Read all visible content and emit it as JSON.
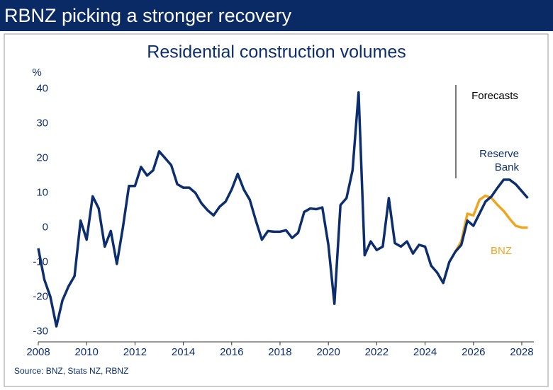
{
  "header": {
    "title": "RBNZ picking a stronger recovery"
  },
  "chart_data": {
    "type": "line",
    "title": "Residential construction volumes",
    "y_label": "%",
    "xlim": [
      2008,
      2028.5
    ],
    "xticks": [
      2008,
      2010,
      2012,
      2014,
      2016,
      2018,
      2020,
      2022,
      2024,
      2026,
      2028
    ],
    "ylim": [
      -33,
      43
    ],
    "yticks": [
      -30,
      -20,
      -10,
      0,
      10,
      20,
      30,
      40
    ],
    "grid": false,
    "series": [
      {
        "name": "BNZ",
        "color": "#f0a51c",
        "x": [
          2025.25,
          2025.5,
          2025.75,
          2026.0,
          2026.25,
          2026.5,
          2026.75,
          2027.0,
          2027.25,
          2027.5,
          2027.75,
          2028.0,
          2028.25
        ],
        "values": [
          -7,
          -4,
          4,
          3.5,
          8,
          9.2,
          8.5,
          6.5,
          4.8,
          2.5,
          0.5,
          0,
          0
        ]
      },
      {
        "name": "Reserve Bank",
        "color": "#0c2e6e",
        "x": [
          2008.0,
          2008.25,
          2008.5,
          2008.75,
          2009.0,
          2009.25,
          2009.5,
          2009.75,
          2010.0,
          2010.25,
          2010.5,
          2010.75,
          2011.0,
          2011.25,
          2011.5,
          2011.75,
          2012.0,
          2012.25,
          2012.5,
          2012.75,
          2013.0,
          2013.25,
          2013.5,
          2013.75,
          2014.0,
          2014.25,
          2014.5,
          2014.75,
          2015.0,
          2015.25,
          2015.5,
          2015.75,
          2016.0,
          2016.25,
          2016.5,
          2016.75,
          2017.0,
          2017.25,
          2017.5,
          2017.75,
          2018.0,
          2018.25,
          2018.5,
          2018.75,
          2019.0,
          2019.25,
          2019.5,
          2019.75,
          2020.0,
          2020.25,
          2020.5,
          2020.75,
          2021.0,
          2021.25,
          2021.5,
          2021.75,
          2022.0,
          2022.25,
          2022.5,
          2022.75,
          2023.0,
          2023.25,
          2023.5,
          2023.75,
          2024.0,
          2024.25,
          2024.5,
          2024.75,
          2025.0,
          2025.25,
          2025.5,
          2025.75,
          2026.0,
          2026.25,
          2026.5,
          2026.75,
          2027.0,
          2027.25,
          2027.5,
          2027.75,
          2028.0,
          2028.25
        ],
        "values": [
          -6,
          -15,
          -20,
          -28.5,
          -21,
          -17,
          -14,
          2,
          -3.5,
          9,
          5.5,
          -5.5,
          -1,
          -10.5,
          0,
          12,
          12,
          17.5,
          15,
          16.5,
          22,
          20,
          18,
          12.5,
          11.5,
          11.5,
          10,
          7,
          5,
          3.5,
          6,
          7.5,
          11,
          15.5,
          11,
          8,
          2,
          -3.5,
          -1,
          -1.2,
          -1.2,
          -0.8,
          -3,
          -1.5,
          4.5,
          5.5,
          5.3,
          5.8,
          -5,
          -22,
          6.5,
          8.5,
          16.5,
          39,
          -8,
          -4,
          -6.5,
          -5.5,
          8.5,
          -4.5,
          -5.5,
          -4,
          -7.5,
          -5,
          -5.5,
          -11,
          -13,
          -16,
          -10,
          -7,
          -5,
          2,
          0.5,
          4,
          7.5,
          9,
          11.5,
          13.8,
          13.8,
          12.5,
          10.5,
          8.5
        ]
      }
    ],
    "annotations": [
      "Forecasts",
      "Reserve",
      "Bank",
      "BNZ"
    ],
    "source": "Source: BNZ, Stats NZ, RBNZ"
  }
}
